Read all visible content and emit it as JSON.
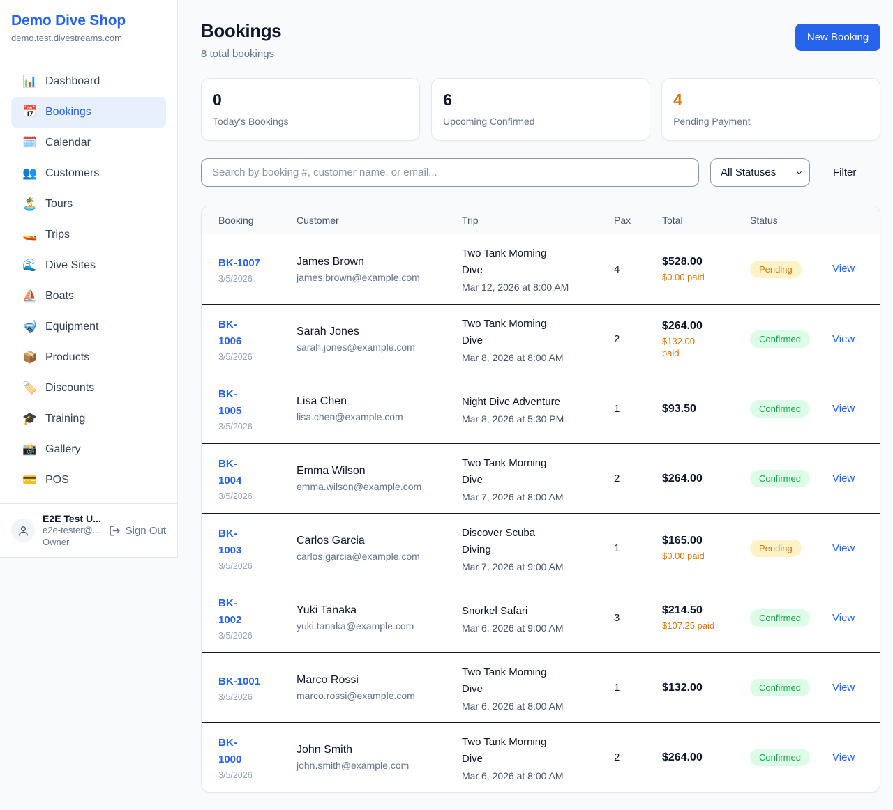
{
  "sidebar": {
    "brand": "Demo Dive Shop",
    "domain": "demo.test.divestreams.com",
    "items": [
      {
        "label": "Dashboard",
        "icon": "bar-chart-icon",
        "glyph": "📊",
        "active": false
      },
      {
        "label": "Bookings",
        "icon": "calendar-icon",
        "glyph": "📅",
        "active": true
      },
      {
        "label": "Calendar",
        "icon": "spiral-calendar-icon",
        "glyph": "🗓️",
        "active": false
      },
      {
        "label": "Customers",
        "icon": "people-icon",
        "glyph": "👥",
        "active": false
      },
      {
        "label": "Tours",
        "icon": "island-icon",
        "glyph": "🏝️",
        "active": false
      },
      {
        "label": "Trips",
        "icon": "speedboat-icon",
        "glyph": "🚤",
        "active": false
      },
      {
        "label": "Dive Sites",
        "icon": "wave-icon",
        "glyph": "🌊",
        "active": false
      },
      {
        "label": "Boats",
        "icon": "sailboat-icon",
        "glyph": "⛵",
        "active": false
      },
      {
        "label": "Equipment",
        "icon": "diving-mask-icon",
        "glyph": "🤿",
        "active": false
      },
      {
        "label": "Products",
        "icon": "package-icon",
        "glyph": "📦",
        "active": false
      },
      {
        "label": "Discounts",
        "icon": "tag-icon",
        "glyph": "🏷️",
        "active": false
      },
      {
        "label": "Training",
        "icon": "graduation-cap-icon",
        "glyph": "🎓",
        "active": false
      },
      {
        "label": "Gallery",
        "icon": "camera-icon",
        "glyph": "📸",
        "active": false
      },
      {
        "label": "POS",
        "icon": "credit-card-icon",
        "glyph": "💳",
        "active": false
      }
    ],
    "user": {
      "name": "E2E Test U...",
      "email": "e2e-tester@...",
      "role": "Owner",
      "sign_out_label": "Sign Out"
    }
  },
  "header": {
    "title": "Bookings",
    "subtitle": "8 total bookings",
    "new_booking_label": "New Booking"
  },
  "stats": [
    {
      "value": "0",
      "label": "Today's Bookings",
      "color": "#0f172a"
    },
    {
      "value": "6",
      "label": "Upcoming Confirmed",
      "color": "#0f172a"
    },
    {
      "value": "4",
      "label": "Pending Payment",
      "color": "#d97706"
    }
  ],
  "filters": {
    "search_placeholder": "Search by booking #, customer name, or email...",
    "status_selected": "All Statuses",
    "filter_label": "Filter"
  },
  "table": {
    "columns": [
      "Booking",
      "Customer",
      "Trip",
      "Pax",
      "Total",
      "Status"
    ],
    "view_label": "View",
    "status_styles": {
      "Pending": {
        "bg": "#fef3c7",
        "text": "#d97706"
      },
      "Confirmed": {
        "bg": "#dcfce7",
        "text": "#16a34a"
      }
    },
    "rows": [
      {
        "id": "BK-1007",
        "date": "3/5/2026",
        "customer": "James Brown",
        "email": "james.brown@example.com",
        "trip": "Two Tank Morning\nDive",
        "trip_time": "Mar 12, 2026 at 8:00 AM",
        "pax": "4",
        "total": "$528.00",
        "paid": "$0.00 paid",
        "status": "Pending"
      },
      {
        "id": "BK-\n1006",
        "date": "3/5/2026",
        "customer": "Sarah Jones",
        "email": "sarah.jones@example.com",
        "trip": "Two Tank Morning\nDive",
        "trip_time": "Mar 8, 2026 at 8:00 AM",
        "pax": "2",
        "total": "$264.00",
        "paid": "$132.00\npaid",
        "status": "Confirmed"
      },
      {
        "id": "BK-\n1005",
        "date": "3/5/2026",
        "customer": "Lisa Chen",
        "email": "lisa.chen@example.com",
        "trip": "Night Dive Adventure",
        "trip_time": "Mar 8, 2026 at 5:30 PM",
        "pax": "1",
        "total": "$93.50",
        "paid": "",
        "status": "Confirmed"
      },
      {
        "id": "BK-\n1004",
        "date": "3/5/2026",
        "customer": "Emma Wilson",
        "email": "emma.wilson@example.com",
        "trip": "Two Tank Morning\nDive",
        "trip_time": "Mar 7, 2026 at 8:00 AM",
        "pax": "2",
        "total": "$264.00",
        "paid": "",
        "status": "Confirmed"
      },
      {
        "id": "BK-\n1003",
        "date": "3/5/2026",
        "customer": "Carlos Garcia",
        "email": "carlos.garcia@example.com",
        "trip": "Discover Scuba\nDiving",
        "trip_time": "Mar 7, 2026 at 9:00 AM",
        "pax": "1",
        "total": "$165.00",
        "paid": "$0.00 paid",
        "status": "Pending"
      },
      {
        "id": "BK-\n1002",
        "date": "3/5/2026",
        "customer": "Yuki Tanaka",
        "email": "yuki.tanaka@example.com",
        "trip": "Snorkel Safari",
        "trip_time": "Mar 6, 2026 at 9:00 AM",
        "pax": "3",
        "total": "$214.50",
        "paid": "$107.25 paid",
        "status": "Confirmed"
      },
      {
        "id": "BK-1001",
        "date": "3/5/2026",
        "customer": "Marco Rossi",
        "email": "marco.rossi@example.com",
        "trip": "Two Tank Morning\nDive",
        "trip_time": "Mar 6, 2026 at 8:00 AM",
        "pax": "1",
        "total": "$132.00",
        "paid": "",
        "status": "Confirmed"
      },
      {
        "id": "BK-\n1000",
        "date": "3/5/2026",
        "customer": "John Smith",
        "email": "john.smith@example.com",
        "trip": "Two Tank Morning\nDive",
        "trip_time": "Mar 6, 2026 at 8:00 AM",
        "pax": "2",
        "total": "$264.00",
        "paid": "",
        "status": "Confirmed"
      }
    ]
  },
  "colors": {
    "accent": "#2563eb",
    "page_bg": "#f8fafc",
    "border": "#e2e8f0",
    "row_divider": "#0f172a",
    "muted": "#64748b",
    "orange": "#d97706",
    "green": "#16a34a"
  }
}
